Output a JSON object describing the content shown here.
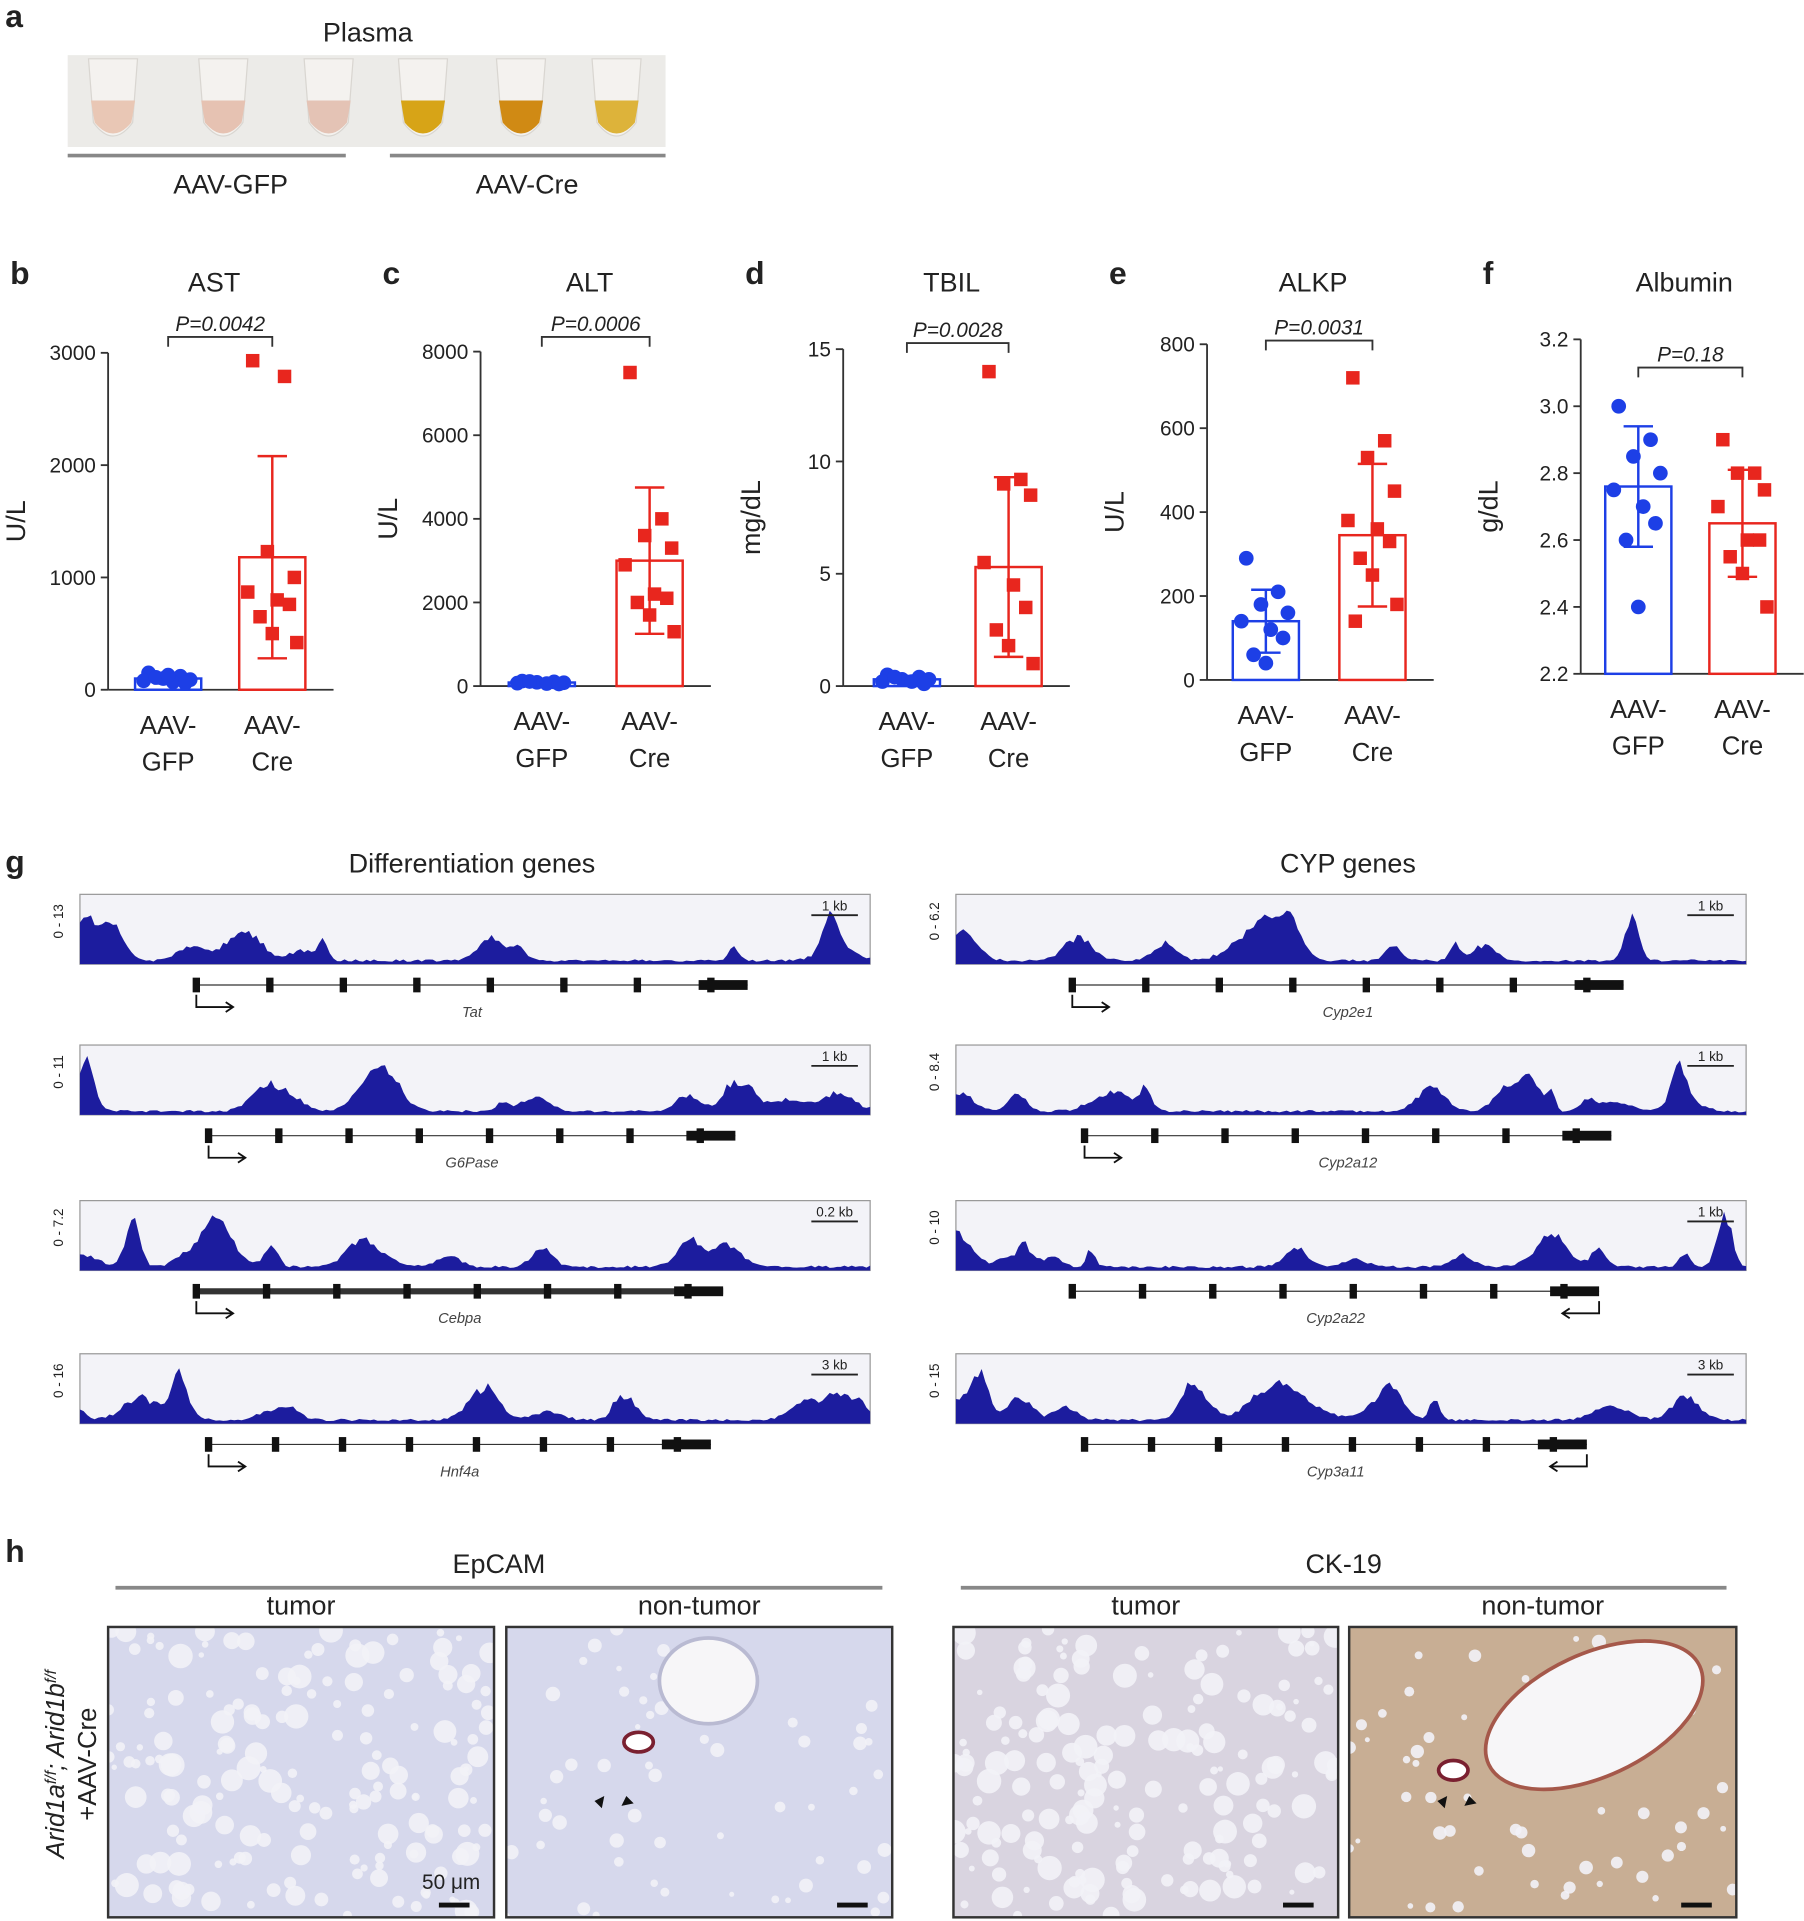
{
  "panel_a": {
    "label": "a",
    "title": "Plasma",
    "groups": [
      "AAV-GFP",
      "AAV-Cre"
    ]
  },
  "chart_data": [
    {
      "type": "bar",
      "panel": "b",
      "title": "AST",
      "ylabel": "U/L",
      "annotation": "P=0.0042",
      "categories": [
        [
          "AAV-",
          "GFP"
        ],
        [
          "AAV-",
          "Cre"
        ]
      ],
      "colors": [
        "#1d3fe6",
        "#e8261e"
      ],
      "markers": [
        "circle",
        "square"
      ],
      "values": [
        100,
        1180
      ],
      "errors": [
        45,
        900
      ],
      "points": [
        [
          150,
          120,
          100,
          90,
          80,
          70,
          60,
          110,
          130
        ],
        [
          2930,
          2790,
          1230,
          1000,
          870,
          800,
          760,
          650,
          500,
          420
        ]
      ],
      "ylim": [
        0,
        3000
      ],
      "yticks": [
        0,
        1000,
        2000,
        3000
      ]
    },
    {
      "type": "bar",
      "panel": "c",
      "title": "ALT",
      "ylabel": "U/L",
      "annotation": "P=0.0006",
      "categories": [
        [
          "AAV-",
          "GFP"
        ],
        [
          "AAV-",
          "Cre"
        ]
      ],
      "colors": [
        "#1d3fe6",
        "#e8261e"
      ],
      "markers": [
        "circle",
        "square"
      ],
      "values": [
        85,
        3000
      ],
      "errors": [
        30,
        1750
      ],
      "points": [
        [
          120,
          100,
          90,
          80,
          70,
          60,
          50,
          110
        ],
        [
          7500,
          4000,
          3600,
          3300,
          2900,
          2200,
          2100,
          2000,
          1700,
          1300
        ]
      ],
      "ylim": [
        0,
        8000
      ],
      "yticks": [
        0,
        2000,
        4000,
        6000,
        8000
      ]
    },
    {
      "type": "bar",
      "panel": "d",
      "title": "TBIL",
      "ylabel": "mg/dL",
      "annotation": "P=0.0028",
      "categories": [
        [
          "AAV-",
          "GFP"
        ],
        [
          "AAV-",
          "Cre"
        ]
      ],
      "colors": [
        "#1d3fe6",
        "#e8261e"
      ],
      "markers": [
        "circle",
        "square"
      ],
      "values": [
        0.3,
        5.3
      ],
      "errors": [
        0.15,
        4
      ],
      "points": [
        [
          0.5,
          0.4,
          0.3,
          0.3,
          0.2,
          0.2,
          0.1,
          0.4
        ],
        [
          14,
          9.2,
          9,
          8.5,
          5.5,
          4.5,
          3.5,
          2.5,
          1.8,
          1
        ]
      ],
      "ylim": [
        0,
        15
      ],
      "yticks": [
        0,
        5,
        10,
        15
      ]
    },
    {
      "type": "bar",
      "panel": "e",
      "title": "ALKP",
      "ylabel": "U/L",
      "annotation": "P=0.0031",
      "categories": [
        [
          "AAV-",
          "GFP"
        ],
        [
          "AAV-",
          "Cre"
        ]
      ],
      "colors": [
        "#1d3fe6",
        "#e8261e"
      ],
      "markers": [
        "circle",
        "square"
      ],
      "values": [
        140,
        345
      ],
      "errors": [
        75,
        170
      ],
      "points": [
        [
          290,
          210,
          180,
          160,
          140,
          120,
          100,
          60,
          40
        ],
        [
          720,
          570,
          530,
          450,
          380,
          360,
          330,
          290,
          250,
          180,
          140
        ]
      ],
      "ylim": [
        0,
        800
      ],
      "yticks": [
        0,
        200,
        400,
        600,
        800
      ]
    },
    {
      "type": "bar",
      "panel": "f",
      "title": "Albumin",
      "ylabel": "g/dL",
      "annotation": "P=0.18",
      "categories": [
        [
          "AAV-",
          "GFP"
        ],
        [
          "AAV-",
          "Cre"
        ]
      ],
      "colors": [
        "#1d3fe6",
        "#e8261e"
      ],
      "markers": [
        "circle",
        "square"
      ],
      "values": [
        2.76,
        2.65
      ],
      "errors": [
        0.18,
        0.16
      ],
      "points": [
        [
          3.0,
          2.9,
          2.85,
          2.8,
          2.75,
          2.7,
          2.65,
          2.6,
          2.4
        ],
        [
          2.9,
          2.8,
          2.8,
          2.75,
          2.7,
          2.6,
          2.6,
          2.55,
          2.5,
          2.4
        ]
      ],
      "ylim": [
        2.2,
        3.2
      ],
      "yticks": [
        2.2,
        2.4,
        2.6,
        2.8,
        {
          "value": 3,
          "label": "3.0"
        },
        3.2
      ]
    }
  ],
  "panel_g": {
    "label": "g",
    "columns": [
      {
        "title": "Differentiation genes",
        "tracks": [
          {
            "range": "0 - 13",
            "scale": "1 kb",
            "gene": "Tat"
          },
          {
            "range": "0 - 11",
            "scale": "1 kb",
            "gene": "G6Pase"
          },
          {
            "range": "0 - 7.2",
            "scale": "0.2 kb",
            "gene": "Cebpa"
          },
          {
            "range": "0 - 16",
            "scale": "3 kb",
            "gene": "Hnf4a"
          }
        ]
      },
      {
        "title": "CYP genes",
        "tracks": [
          {
            "range": "0 - 6.2",
            "scale": "1 kb",
            "gene": "Cyp2e1"
          },
          {
            "range": "0 - 8.4",
            "scale": "1 kb",
            "gene": "Cyp2a12"
          },
          {
            "range": "0 - 10",
            "scale": "1 kb",
            "gene": "Cyp2a22"
          },
          {
            "range": "0 - 15",
            "scale": "3 kb",
            "gene": "Cyp3a11"
          }
        ]
      }
    ]
  },
  "panel_h": {
    "label": "h",
    "row_label": {
      "line1": [
        "Arid1a",
        "f/f",
        "; Arid1b",
        "f/f"
      ],
      "line2": "+AAV-Cre"
    },
    "stains": [
      {
        "name": "EpCAM",
        "conditions": [
          "tumor",
          "non-tumor"
        ]
      },
      {
        "name": "CK-19",
        "conditions": [
          "tumor",
          "non-tumor"
        ]
      }
    ],
    "scale_bar": "50 μm"
  }
}
